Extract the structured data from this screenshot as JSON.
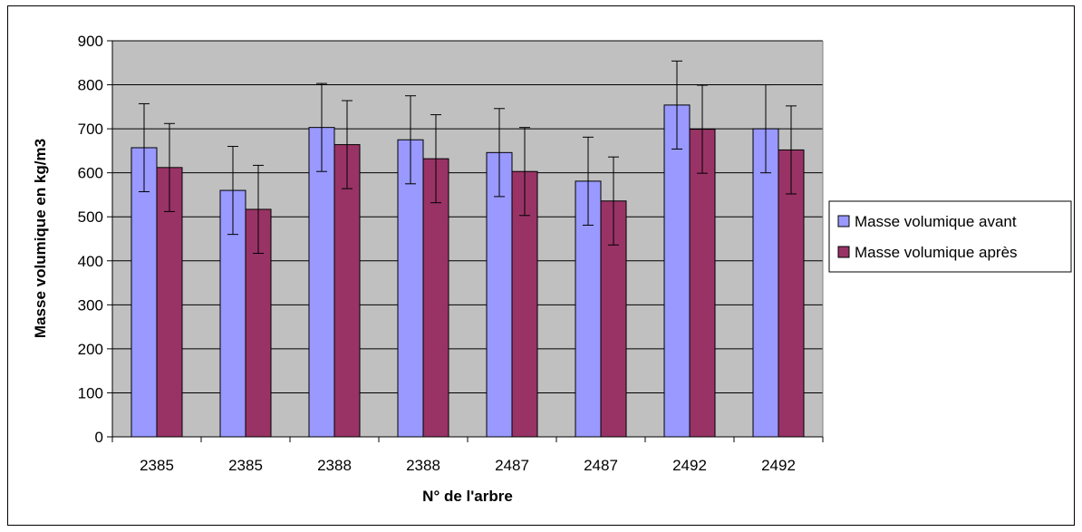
{
  "chart_data": {
    "type": "bar",
    "categories": [
      "2385",
      "2385",
      "2388",
      "2388",
      "2487",
      "2487",
      "2492",
      "2492"
    ],
    "series": [
      {
        "name": "Masse volumique avant",
        "color": "#9999ff",
        "values": [
          657,
          560,
          703,
          675,
          646,
          581,
          754,
          700
        ],
        "error": [
          100,
          100,
          100,
          100,
          100,
          100,
          100,
          100
        ]
      },
      {
        "name": "Masse volumique après",
        "color": "#993366",
        "values": [
          612,
          517,
          664,
          632,
          603,
          536,
          699,
          652
        ],
        "error": [
          100,
          100,
          100,
          100,
          100,
          100,
          100,
          100
        ]
      }
    ],
    "xlabel": "N° de l'arbre",
    "ylabel": "Masse volumique en kg/m3",
    "ylim": [
      0,
      900
    ],
    "yticks": [
      0,
      100,
      200,
      300,
      400,
      500,
      600,
      700,
      800,
      900
    ],
    "grid": true,
    "plot_background": "#c0c0c0",
    "legend_position": "right"
  }
}
